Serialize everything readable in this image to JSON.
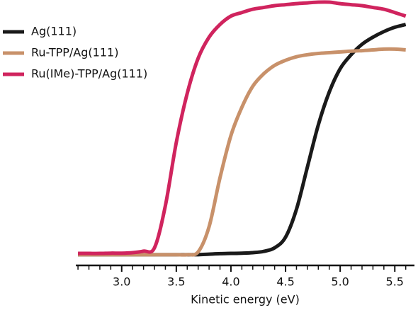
{
  "chart_data": {
    "type": "line",
    "xlabel": "Kinetic energy (eV)",
    "x": [
      2.6,
      2.7,
      2.8,
      2.9,
      3.0,
      3.1,
      3.2,
      3.3,
      3.4,
      3.5,
      3.6,
      3.7,
      3.8,
      3.9,
      4.0,
      4.1,
      4.2,
      4.3,
      4.4,
      4.5,
      4.6,
      4.7,
      4.8,
      4.9,
      5.0,
      5.1,
      5.2,
      5.3,
      5.4,
      5.5,
      5.6
    ],
    "series": [
      {
        "name": "Ag(111)",
        "color": "#1a1a1a",
        "values": [
          0.006,
          0.006,
          0.006,
          0.006,
          0.006,
          0.006,
          0.006,
          0.006,
          0.006,
          0.006,
          0.006,
          0.006,
          0.008,
          0.01,
          0.011,
          0.012,
          0.014,
          0.019,
          0.033,
          0.075,
          0.185,
          0.351,
          0.517,
          0.646,
          0.738,
          0.793,
          0.834,
          0.862,
          0.884,
          0.901,
          0.912
        ]
      },
      {
        "name": "Ru-TPP/Ag(111)",
        "color": "#c8916a",
        "values": [
          0.006,
          0.006,
          0.006,
          0.006,
          0.006,
          0.006,
          0.006,
          0.006,
          0.006,
          0.006,
          0.006,
          0.017,
          0.116,
          0.309,
          0.475,
          0.586,
          0.669,
          0.718,
          0.751,
          0.771,
          0.785,
          0.793,
          0.798,
          0.801,
          0.804,
          0.807,
          0.809,
          0.812,
          0.815,
          0.815,
          0.812
        ]
      },
      {
        "name": "Ru(IMe)-TPP/Ag(111)",
        "color": "#d0245e",
        "values": [
          0.011,
          0.011,
          0.011,
          0.012,
          0.012,
          0.014,
          0.02,
          0.033,
          0.199,
          0.448,
          0.641,
          0.779,
          0.862,
          0.912,
          0.945,
          0.959,
          0.972,
          0.979,
          0.986,
          0.99,
          0.994,
          0.997,
          1.0,
          1.0,
          0.994,
          0.99,
          0.986,
          0.979,
          0.972,
          0.959,
          0.945
        ]
      }
    ],
    "xlim": [
      2.58,
      5.68
    ],
    "ylim": [
      0,
      1
    ],
    "xticks": [
      {
        "value": 3.0,
        "label": "3.0"
      },
      {
        "value": 3.5,
        "label": "3.5"
      },
      {
        "value": 4.0,
        "label": "4.0"
      },
      {
        "value": 4.5,
        "label": "4.5"
      },
      {
        "value": 5.0,
        "label": "5.0"
      },
      {
        "value": 5.5,
        "label": "5.5"
      }
    ],
    "xminorticks": [
      2.6,
      2.7,
      2.8,
      2.9,
      3.1,
      3.2,
      3.3,
      3.4,
      3.6,
      3.7,
      3.8,
      3.9,
      4.1,
      4.2,
      4.3,
      4.4,
      4.6,
      4.7,
      4.8,
      4.9,
      5.1,
      5.2,
      5.3,
      5.4,
      5.6
    ],
    "legend": "upper left"
  }
}
